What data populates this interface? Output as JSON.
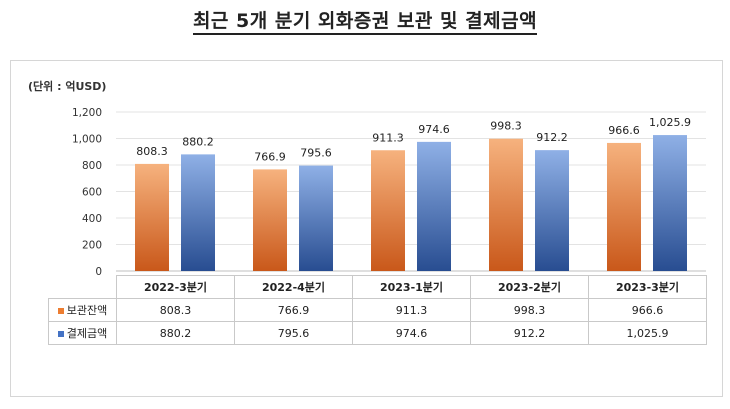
{
  "title": "최근 5개 분기 외화증권 보관 및 결제금액",
  "unit": "(단위 : 억USD)",
  "colors": {
    "storage": "#ED7D31",
    "settlement": "#4472C4"
  },
  "chart_data": {
    "type": "bar",
    "title": "최근 5개 분기 외화증권 보관 및 결제금액",
    "ylabel": "(단위 : 억USD)",
    "categories": [
      "2022-3분기",
      "2022-4분기",
      "2023-1분기",
      "2023-2분기",
      "2023-3분기"
    ],
    "series": [
      {
        "name": "보관잔액",
        "values": [
          808.3,
          766.9,
          911.3,
          998.3,
          966.6
        ],
        "labels": [
          "808.3",
          "766.9",
          "911.3",
          "998.3",
          "966.6"
        ]
      },
      {
        "name": "결제금액",
        "values": [
          880.2,
          795.6,
          974.6,
          912.2,
          1025.9
        ],
        "labels": [
          "880.2",
          "795.6",
          "974.6",
          "912.2",
          "1,025.9"
        ]
      }
    ],
    "ylim": [
      0,
      1200
    ],
    "yticks": [
      "0",
      "200",
      "400",
      "600",
      "800",
      "1,000",
      "1,200"
    ],
    "grid": true,
    "legend": "data-table"
  }
}
